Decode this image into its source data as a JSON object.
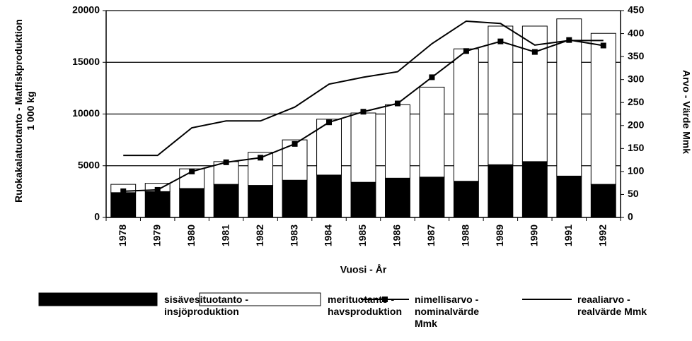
{
  "chart_data": {
    "type": "bar",
    "stacked": true,
    "categories": [
      "1978",
      "1979",
      "1980",
      "1981",
      "1982",
      "1983",
      "1984",
      "1985",
      "1986",
      "1987",
      "1988",
      "1989",
      "1990",
      "1991",
      "1992"
    ],
    "series": [
      {
        "name": "sisävesituotanto - insjöproduktion",
        "type": "bar",
        "color": "#000000",
        "values": [
          2400,
          2500,
          2800,
          3200,
          3100,
          3600,
          4100,
          3400,
          3800,
          3900,
          3500,
          5100,
          5400,
          4000,
          3200
        ]
      },
      {
        "name": "merituotanto - havsproduktion",
        "type": "bar",
        "color": "#ffffff",
        "values": [
          800,
          800,
          1900,
          2200,
          3200,
          3900,
          5400,
          6700,
          7100,
          8700,
          12800,
          13400,
          13100,
          15200,
          14600
        ]
      },
      {
        "name": "nimellisarvo - nominalvärde Mmk",
        "type": "line",
        "axis": "y2",
        "color": "#000000",
        "marker": "square",
        "values": [
          57,
          60,
          100,
          120,
          130,
          160,
          207,
          230,
          248,
          305,
          362,
          383,
          360,
          386,
          374
        ]
      },
      {
        "name": "reaaliarvo - realvärde Mmk",
        "type": "line",
        "axis": "y2",
        "color": "#000000",
        "marker": "none",
        "values": [
          135,
          135,
          195,
          210,
          210,
          240,
          290,
          305,
          317,
          378,
          427,
          422,
          375,
          385,
          385
        ]
      }
    ],
    "xlabel": "Vuosi - År",
    "ylabel": "Ruokakalatuotanto - Matfiskproduktion 1 000 kg",
    "y2label": "Arvo - Värde Mmk",
    "ylim": [
      0,
      20000
    ],
    "yticks": [
      0,
      5000,
      10000,
      15000,
      20000
    ],
    "y2lim": [
      0,
      450
    ],
    "y2ticks": [
      0,
      50,
      100,
      150,
      200,
      250,
      300,
      350,
      400,
      450
    ],
    "grid": true,
    "legend": "bottom"
  }
}
